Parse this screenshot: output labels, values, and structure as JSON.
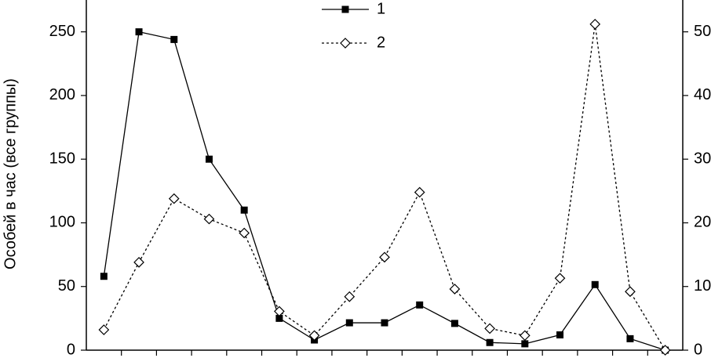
{
  "chart_data": {
    "type": "line",
    "y_label": "Особей в час (все группы)",
    "categories": [
      null,
      null,
      null,
      null,
      null,
      null,
      null,
      null,
      null,
      null,
      null,
      null,
      null,
      null,
      null,
      null,
      null
    ],
    "series": [
      {
        "name": "1",
        "color": "#000000",
        "marker": "square",
        "line_style": "solid",
        "axis": "y",
        "values": [
          58,
          250,
          244,
          150,
          110,
          25,
          8,
          21.5,
          21.5,
          35.5,
          21,
          6,
          5,
          12,
          51.5,
          9,
          0
        ]
      },
      {
        "name": "2",
        "color": "#000000",
        "marker": "diamond",
        "line_style": "dotted",
        "axis": "y2",
        "values": [
          3.2,
          13.8,
          23.8,
          20.6,
          18.4,
          6.1,
          2.3,
          8.4,
          14.6,
          24.8,
          9.6,
          3.4,
          2.3,
          11.3,
          51.2,
          9.2,
          0
        ]
      }
    ],
    "ylim": [
      0,
      275
    ],
    "yticks": [
      0,
      50,
      100,
      150,
      200,
      250
    ],
    "y2lim": [
      0,
      55
    ],
    "y2ticks": [
      0,
      10,
      20,
      30,
      40,
      50
    ],
    "legend": "upper center",
    "grid": false
  }
}
